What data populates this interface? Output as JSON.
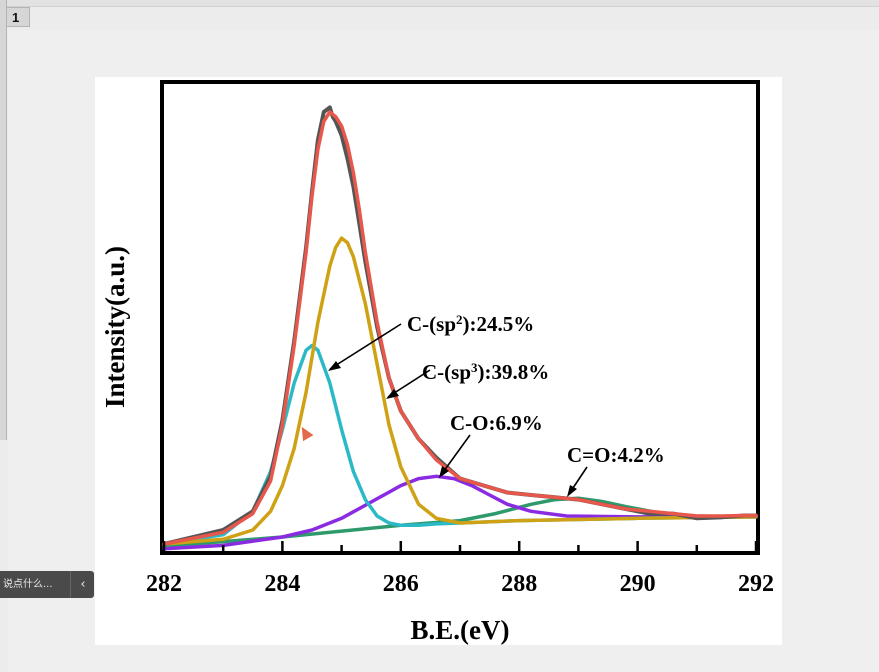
{
  "window": {
    "slide_number": "1"
  },
  "comment_bar": {
    "text": "说点什么...",
    "collapse_icon": "chevron-left-icon"
  },
  "chart_data": {
    "type": "line",
    "xlabel": "B.E.(eV)",
    "ylabel": "Intensity(a.u.)",
    "xlim": [
      282,
      292
    ],
    "ylim": [
      0,
      100
    ],
    "x_ticks": [
      "282",
      "284",
      "286",
      "288",
      "290",
      "292"
    ],
    "grid": false,
    "annotations": {
      "sp2_prefix": "C-(sp",
      "sp2_sup": "2",
      "sp2_suffix": "):24.5%",
      "sp3_prefix": "C-(sp",
      "sp3_sup": "3",
      "sp3_suffix": "):39.8%",
      "co": "C-O:6.9%",
      "cdo": "C=O:4.2%"
    },
    "colors": {
      "raw": "#555555",
      "fit": "#e8574b",
      "sp2": "#2cb9c7",
      "sp3": "#cfa215",
      "co": "#8a2be2",
      "cdo": "#2e9a6c"
    },
    "series": [
      {
        "key": "raw",
        "x": [
          282.0,
          283.0,
          283.5,
          283.8,
          284.0,
          284.2,
          284.4,
          284.5,
          284.6,
          284.7,
          284.8,
          284.85,
          284.9,
          285.0,
          285.1,
          285.2,
          285.3,
          285.4,
          285.6,
          285.8,
          286.0,
          286.3,
          286.6,
          287.0,
          287.4,
          287.8,
          288.2,
          288.6,
          289.0,
          289.4,
          289.8,
          290.2,
          290.6,
          291.0,
          291.4,
          291.8,
          292.0
        ],
        "y": [
          1.5,
          4.5,
          8.5,
          16,
          28,
          45,
          65,
          77,
          88,
          94,
          95,
          93,
          92,
          89,
          84,
          78,
          70,
          62,
          48,
          37,
          30,
          24,
          20,
          15.5,
          14,
          12.5,
          12,
          11.5,
          11,
          10,
          9,
          8,
          8,
          7,
          7.2,
          7.6,
          7.6
        ]
      },
      {
        "key": "fit",
        "x": [
          282.0,
          283.0,
          283.5,
          283.8,
          284.0,
          284.2,
          284.4,
          284.5,
          284.6,
          284.7,
          284.8,
          284.9,
          285.0,
          285.1,
          285.2,
          285.3,
          285.4,
          285.6,
          285.8,
          286.0,
          286.3,
          286.6,
          287.0,
          287.4,
          287.8,
          288.2,
          288.6,
          289.0,
          289.4,
          289.8,
          290.2,
          290.6,
          291.0,
          291.4,
          291.8,
          292.0
        ],
        "y": [
          1.5,
          4,
          8,
          15,
          27,
          44,
          64,
          76,
          86,
          92,
          94,
          93,
          91,
          87,
          81,
          73,
          64,
          49,
          37,
          30,
          24,
          19.5,
          15.5,
          14,
          12.5,
          12,
          11.5,
          11,
          10,
          9,
          8.5,
          8,
          7.5,
          7.5,
          7.6,
          7.6
        ]
      },
      {
        "key": "sp2",
        "x": [
          282.0,
          283.0,
          283.5,
          283.8,
          284.0,
          284.2,
          284.4,
          284.5,
          284.6,
          284.8,
          285.0,
          285.2,
          285.4,
          285.6,
          285.8,
          286.0,
          286.3,
          286.6,
          287.0,
          288.0,
          290.0,
          292.0
        ],
        "y": [
          1.5,
          3.5,
          8.5,
          17,
          26,
          36,
          43,
          44,
          43,
          36,
          26,
          17,
          11,
          7.5,
          6,
          5.5,
          5.5,
          5.8,
          6,
          6.5,
          7,
          7.3
        ]
      },
      {
        "key": "sp3",
        "x": [
          282.0,
          283.0,
          283.5,
          283.8,
          284.0,
          284.2,
          284.4,
          284.6,
          284.8,
          284.9,
          285.0,
          285.1,
          285.2,
          285.4,
          285.6,
          285.8,
          286.0,
          286.3,
          286.6,
          287.0,
          288.0,
          290.0,
          292.0
        ],
        "y": [
          1.5,
          2.5,
          4.5,
          8.5,
          14,
          22,
          34,
          49,
          61,
          65,
          67,
          66,
          63,
          53,
          40,
          27,
          18,
          10,
          7,
          6,
          6.5,
          7,
          7.3
        ]
      },
      {
        "key": "co",
        "x": [
          282.0,
          283.0,
          284.0,
          284.5,
          285.0,
          285.5,
          286.0,
          286.3,
          286.6,
          286.9,
          287.2,
          287.5,
          287.8,
          288.2,
          288.8,
          290.0,
          292.0
        ],
        "y": [
          0.5,
          1.2,
          3,
          4.5,
          7,
          10.5,
          14,
          15.5,
          16,
          15.5,
          14,
          12,
          10,
          8.5,
          7.5,
          7.3,
          7.3
        ]
      },
      {
        "key": "cdo",
        "x": [
          282.0,
          284.0,
          286.0,
          287.0,
          287.6,
          288.2,
          288.6,
          289.0,
          289.4,
          289.8,
          290.3,
          291.0,
          292.0
        ],
        "y": [
          1,
          3,
          5.5,
          6.5,
          8,
          10,
          11,
          11.3,
          10.6,
          9.5,
          8.3,
          7.5,
          7.3
        ]
      }
    ]
  }
}
